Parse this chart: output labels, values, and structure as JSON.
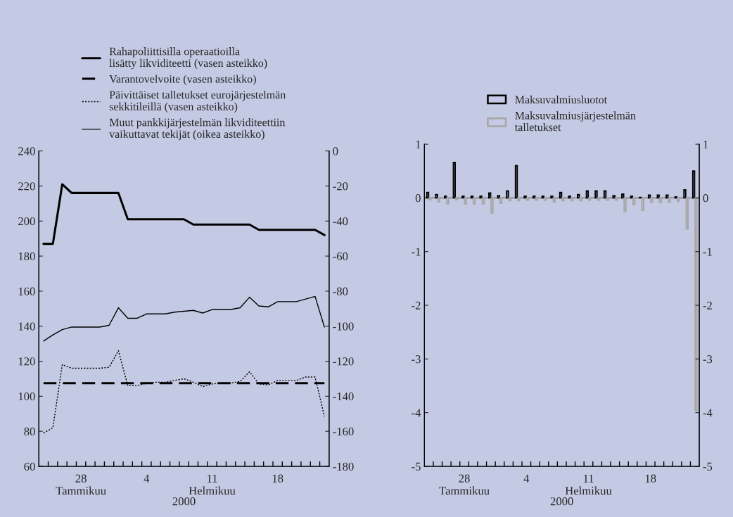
{
  "chart_data": [
    {
      "type": "line",
      "xlabel": "2000",
      "legend": "top",
      "x": [
        "2000-01-24T12:00",
        "2000-01-25T12:00",
        "2000-01-26T12:00",
        "2000-01-27T12:00",
        "2000-01-28T12:00",
        "2000-01-29T12:00",
        "2000-01-30T12:00",
        "2000-01-31T12:00",
        "2000-02-01T12:00",
        "2000-02-02T12:00",
        "2000-02-03T12:00",
        "2000-02-04T12:00",
        "2000-02-05T12:00",
        "2000-02-06T12:00",
        "2000-02-07T12:00",
        "2000-02-08T12:00",
        "2000-02-09T12:00",
        "2000-02-10T12:00",
        "2000-02-11T12:00",
        "2000-02-12T12:00",
        "2000-02-13T12:00",
        "2000-02-14T12:00",
        "2000-02-15T12:00",
        "2000-02-16T12:00",
        "2000-02-17T12:00",
        "2000-02-18T12:00",
        "2000-02-19T12:00",
        "2000-02-20T12:00",
        "2000-02-21T12:00",
        "2000-02-22T12:00",
        "2000-02-23T12:00"
      ],
      "series": [
        {
          "name": "Rahapoliittisilla operaatioilla\nlisätty likviditeetti (vasen asteikko)",
          "color": "#000000",
          "line_style": "solid",
          "values": [
            187,
            187,
            221,
            216,
            216,
            216,
            216,
            216,
            216,
            201,
            201,
            201,
            201,
            201,
            201,
            201,
            198,
            198,
            198,
            198,
            198,
            198,
            198,
            195,
            195,
            195,
            195,
            195,
            195,
            195,
            192
          ]
        },
        {
          "name": "Varantovelvoite (vasen asteikko)",
          "color": "#000000",
          "line_style": "dashed",
          "values": [
            107.5,
            107.5,
            107.5,
            107.5,
            107.5,
            107.5,
            107.5,
            107.5,
            107.5,
            107.5,
            107.5,
            107.5,
            107.5,
            107.5,
            107.5,
            107.5,
            107.5,
            107.5,
            107.5,
            107.5,
            107.5,
            107.5,
            107.5,
            107.5,
            107.5,
            107.5,
            107.5,
            107.5,
            107.5,
            107.5,
            107.5
          ]
        },
        {
          "name": "Päivittäiset talletukset eurojärjestelmän\nsekkitileillä (vasen asteikko)",
          "color": "#000000",
          "line_style": "dotted",
          "values": [
            79,
            82,
            118,
            116,
            116,
            116,
            116,
            116.5,
            126,
            106,
            106,
            107.5,
            108,
            108,
            109,
            110,
            108,
            105.5,
            107,
            107.5,
            107.5,
            108.5,
            114,
            107,
            106.5,
            109,
            109,
            109,
            111,
            111,
            88.5
          ]
        },
        {
          "name": "Muut pankkijärjestelmän likviditeettiin\nvaikuttavat tekijät (oikea asteikko)",
          "color": "#000000",
          "line_style": "solid",
          "axis": "y2",
          "values": [
            -108.5,
            -105,
            -102,
            -100.5,
            -100.5,
            -100.5,
            -100.5,
            -99.5,
            -89.5,
            -95.5,
            -95.5,
            -93,
            -93,
            -93,
            -92,
            -91.5,
            -91,
            -92.5,
            -90.5,
            -90.5,
            -90.5,
            -89.5,
            -83.5,
            -88.5,
            -89,
            -86,
            -86,
            -86,
            -84.5,
            -83,
            -100.5
          ]
        }
      ],
      "xlim": [
        "2000-01-24",
        "2000-02-24"
      ],
      "xticks": [
        {
          "value": "2000-01-25",
          "label": null
        },
        {
          "value": "2000-01-26",
          "label": null
        },
        {
          "value": "2000-01-27",
          "label": null
        },
        {
          "value": "2000-01-28",
          "label": null
        },
        {
          "value": "2000-01-29",
          "label": null
        },
        {
          "value": "2000-01-30",
          "label": null
        },
        {
          "value": "2000-01-31",
          "label": null
        },
        {
          "value": "2000-02-01",
          "label": null
        },
        {
          "value": "2000-02-02",
          "label": null
        },
        {
          "value": "2000-02-03",
          "label": null
        },
        {
          "value": "2000-02-04",
          "label": null
        },
        {
          "value": "2000-02-05",
          "label": null
        },
        {
          "value": "2000-02-06",
          "label": null
        },
        {
          "value": "2000-02-07",
          "label": null
        },
        {
          "value": "2000-02-08",
          "label": null
        },
        {
          "value": "2000-02-09",
          "label": null
        },
        {
          "value": "2000-02-10",
          "label": null
        },
        {
          "value": "2000-02-11",
          "label": null
        },
        {
          "value": "2000-02-12",
          "label": null
        },
        {
          "value": "2000-02-13",
          "label": null
        },
        {
          "value": "2000-02-14",
          "label": null
        },
        {
          "value": "2000-02-15",
          "label": null
        },
        {
          "value": "2000-02-16",
          "label": null
        },
        {
          "value": "2000-02-17",
          "label": null
        },
        {
          "value": "2000-02-18",
          "label": null
        },
        {
          "value": "2000-02-19",
          "label": null
        },
        {
          "value": "2000-02-20",
          "label": null
        },
        {
          "value": "2000-02-21",
          "label": null
        },
        {
          "value": "2000-02-22",
          "label": null
        },
        {
          "value": "2000-02-23",
          "label": null
        },
        {
          "value": "2000-01-28T12:00",
          "label": "28\nTammikuu"
        },
        {
          "value": "2000-02-04T12:00",
          "label": "4"
        },
        {
          "value": "2000-02-11T12:00",
          "label": "11\nHelmikuu"
        },
        {
          "value": "2000-02-18T12:00",
          "label": "18"
        }
      ],
      "ylim": [
        60,
        240
      ],
      "yticks": [
        60,
        80,
        100,
        120,
        140,
        160,
        180,
        200,
        220,
        240
      ],
      "y2lim": [
        -180,
        0
      ],
      "y2ticks": [
        -180,
        -160,
        -140,
        -120,
        -100,
        -80,
        -60,
        -40,
        -20,
        0
      ]
    },
    {
      "type": "bar",
      "xlabel": "2000",
      "legend": "top",
      "categories": [
        null,
        null,
        null,
        null,
        "28\nTammikuu",
        null,
        null,
        null,
        null,
        null,
        null,
        "4",
        null,
        null,
        null,
        null,
        null,
        null,
        "11\nHelmikuu",
        null,
        null,
        null,
        null,
        null,
        null,
        "18",
        null,
        null,
        null,
        null,
        null
      ],
      "series": [
        {
          "name": "Maksuvalmiusluotot",
          "color": "#000000",
          "values": [
            0.1,
            0.06,
            0.03,
            0.66,
            0.03,
            0.03,
            0.03,
            0.09,
            0.04,
            0.13,
            0.6,
            0.03,
            0.03,
            0.03,
            0.03,
            0.1,
            0.03,
            0.06,
            0.13,
            0.13,
            0.13,
            0.04,
            0.07,
            0.03,
            0.01,
            0.05,
            0.05,
            0.05,
            0.02,
            0.15,
            0.5
          ]
        },
        {
          "name": "Maksuvalmiusjärjestelmän\ntalletukset",
          "color": "#a6a6a6",
          "values": [
            -0.03,
            -0.07,
            -0.11,
            -0.03,
            -0.11,
            -0.11,
            -0.11,
            -0.28,
            -0.1,
            -0.05,
            -0.05,
            -0.04,
            -0.04,
            -0.04,
            -0.07,
            -0.05,
            -0.05,
            -0.05,
            -0.04,
            -0.04,
            -0.04,
            -0.04,
            -0.25,
            -0.12,
            -0.23,
            -0.08,
            -0.08,
            -0.08,
            -0.06,
            -0.58,
            -3.96
          ]
        }
      ],
      "ylim": [
        -5,
        1
      ],
      "yticks": [
        -5,
        -4,
        -3,
        -2,
        -1,
        0,
        1
      ],
      "y2lim": [
        -5,
        1
      ],
      "y2ticks": [
        -5,
        -4,
        -3,
        -2,
        -1,
        0,
        1
      ]
    }
  ]
}
